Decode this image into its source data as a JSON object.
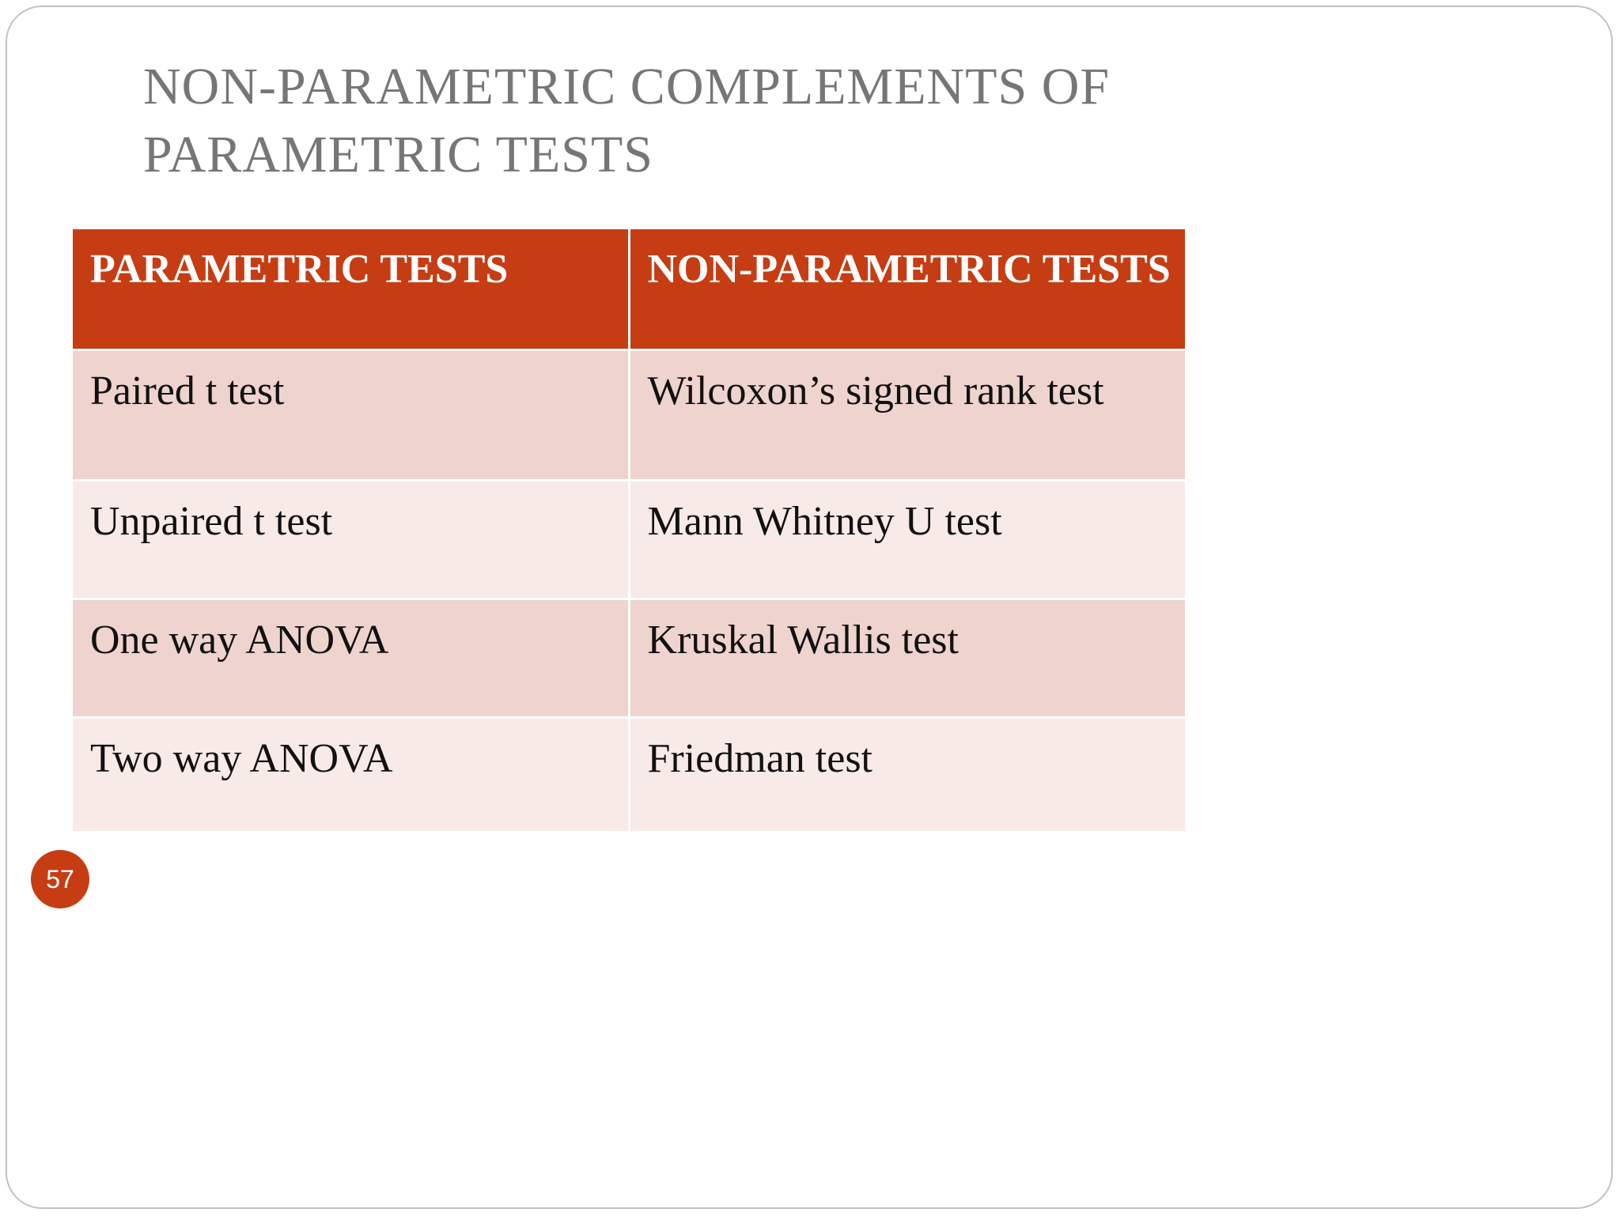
{
  "slide": {
    "title_lines": [
      "NON-PARAMETRIC COMPLEMENTS OF",
      "PARAMETRIC TESTS"
    ],
    "page_number": "57"
  },
  "table": {
    "headers": [
      "PARAMETRIC TESTS",
      "NON-PARAMETRIC TESTS"
    ],
    "rows": [
      [
        "Paired t test",
        "Wilcoxon’s signed rank test"
      ],
      [
        "Unpaired t test",
        "Mann Whitney U test"
      ],
      [
        "One way ANOVA",
        "Kruskal Wallis test"
      ],
      [
        "Two way  ANOVA",
        "Friedman test"
      ]
    ]
  },
  "colors": {
    "header_bg": "#c63d14",
    "row_dark_bg": "#eed3cf",
    "row_light_bg": "#f8eae7",
    "title_text": "#767676",
    "badge_bg": "#c63d14"
  }
}
